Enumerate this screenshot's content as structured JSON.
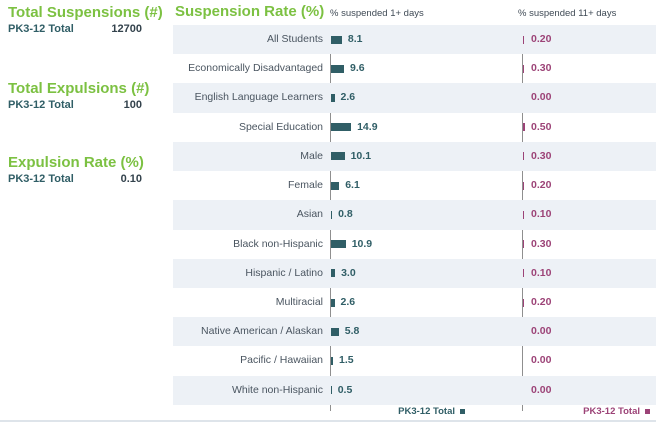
{
  "colors": {
    "green": "#7cc142",
    "teal": "#305e66",
    "magenta": "#9c4377",
    "stripe": "#edf1f6",
    "axis": "#8f8f8f",
    "label_text": "#4a5560",
    "header_text": "#3f4a55",
    "border": "#dee4ea"
  },
  "stats": [
    {
      "title": "Total Suspensions (#)",
      "row_label": "PK3-12 Total",
      "value": "12700"
    },
    {
      "title": "Total Expulsions (#)",
      "row_label": "PK3-12 Total",
      "value": "100"
    },
    {
      "title": "Expulsion Rate (%)",
      "row_label": "PK3-12 Total",
      "value": "0.10"
    }
  ],
  "chart_data": {
    "type": "bar",
    "title": "Suspension Rate (%)",
    "orientation": "horizontal",
    "columns": [
      "% suspended 1+ days",
      "% suspended 11+ days"
    ],
    "categories": [
      "All Students",
      "Economically Disadvantaged",
      "English Language Learners",
      "Special Education",
      "Male",
      "Female",
      "Asian",
      "Black non-Hispanic",
      "Hispanic / Latino",
      "Multiracial",
      "Native American / Alaskan",
      "Pacific / Hawaiian",
      "White non-Hispanic"
    ],
    "series": [
      {
        "name": "% suspended 1+ days",
        "values": [
          8.1,
          9.6,
          2.6,
          14.9,
          10.1,
          6.1,
          0.8,
          10.9,
          3.0,
          2.6,
          5.8,
          1.5,
          0.5
        ]
      },
      {
        "name": "% suspended 11+ days",
        "values": [
          0.2,
          0.3,
          0.0,
          0.5,
          0.3,
          0.2,
          0.1,
          0.3,
          0.1,
          0.2,
          0.0,
          0.0,
          0.0
        ]
      }
    ],
    "legend": [
      {
        "label": "PK3-12 Total",
        "color": "#305e66"
      },
      {
        "label": "PK3-12 Total",
        "color": "#9c4377"
      }
    ],
    "grid": false,
    "legend_position": "bottom"
  }
}
